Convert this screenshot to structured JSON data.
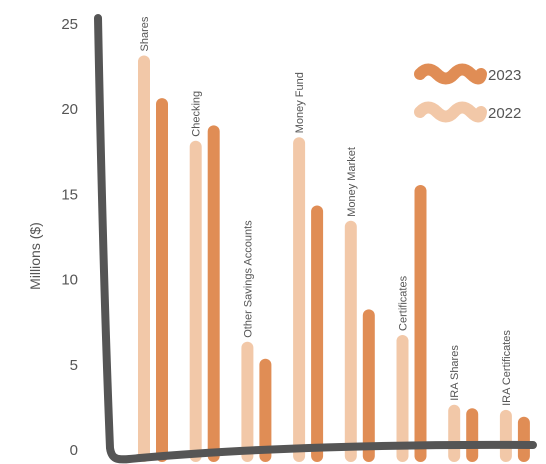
{
  "chart_data": {
    "type": "bar",
    "ylabel": "Millions ($)",
    "ylim": [
      0,
      25
    ],
    "yticks": [
      0,
      5,
      10,
      15,
      20,
      25
    ],
    "grid": false,
    "legend_position": "top-right",
    "categories": [
      "Shares",
      "Checking",
      "Other Savings Accounts",
      "Money Fund",
      "Money Market",
      "Certificates",
      "IRA Shares",
      "IRA Certificates"
    ],
    "series": [
      {
        "name": "2022",
        "color": "#f2c8a8",
        "values": [
          22.8,
          17.8,
          6.0,
          18.0,
          13.1,
          6.4,
          2.3,
          2.0
        ]
      },
      {
        "name": "2023",
        "color": "#e08d55",
        "values": [
          20.3,
          18.7,
          5.0,
          14.0,
          7.9,
          15.2,
          2.1,
          1.6
        ]
      }
    ],
    "axis_color": "#555555"
  }
}
